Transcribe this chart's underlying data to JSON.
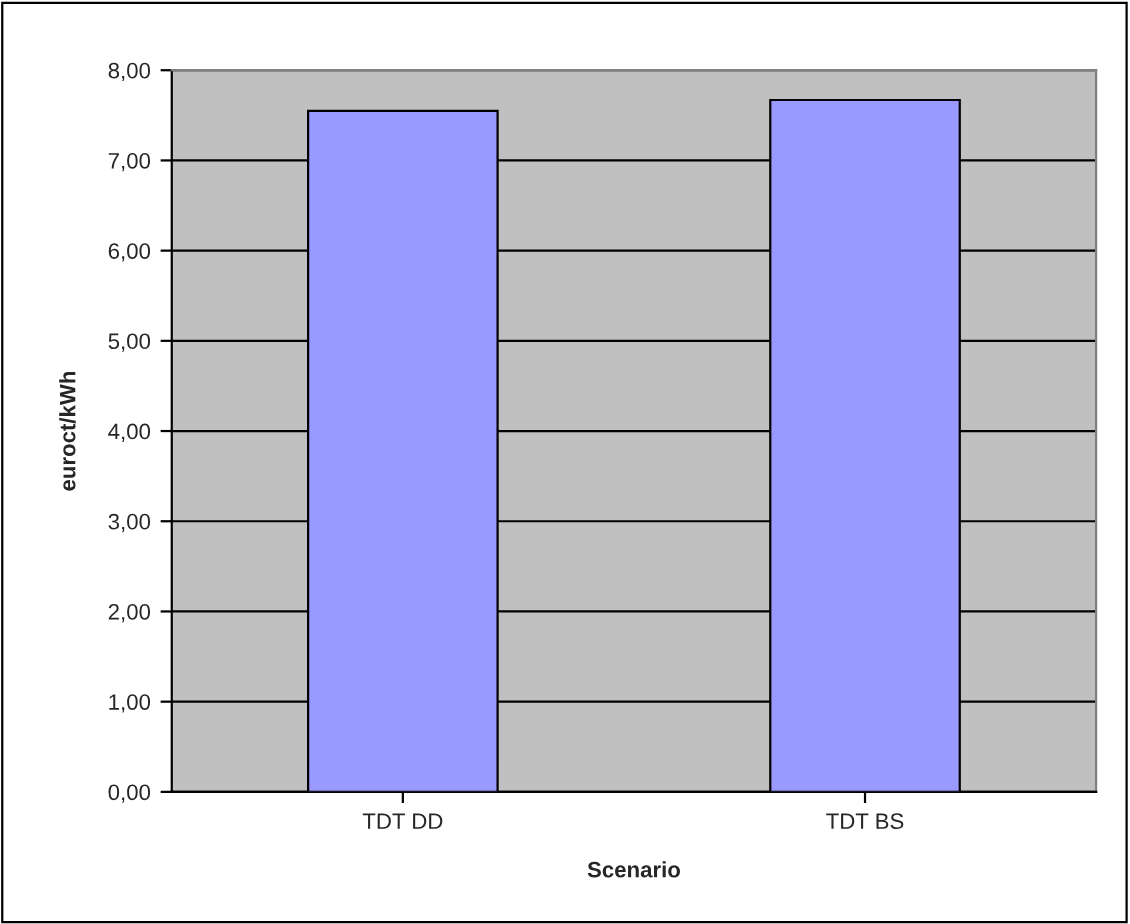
{
  "chart_data": {
    "type": "bar",
    "xlabel": "Scenario",
    "ylabel": "euroct/kWh",
    "categories": [
      "TDT DD",
      "TDT BS"
    ],
    "series": [
      {
        "color": "#9999ff",
        "values": [
          7.55,
          7.67
        ]
      }
    ],
    "ylim": [
      0,
      8
    ],
    "yticks": [
      {
        "value": 0,
        "label": "0,00"
      },
      {
        "value": 1,
        "label": "1,00"
      },
      {
        "value": 2,
        "label": "2,00"
      },
      {
        "value": 3,
        "label": "3,00"
      },
      {
        "value": 4,
        "label": "4,00"
      },
      {
        "value": 5,
        "label": "5,00"
      },
      {
        "value": 6,
        "label": "6,00"
      },
      {
        "value": 7,
        "label": "7,00"
      },
      {
        "value": 8,
        "label": "8,00"
      }
    ],
    "grid": "y",
    "legend": false
  }
}
